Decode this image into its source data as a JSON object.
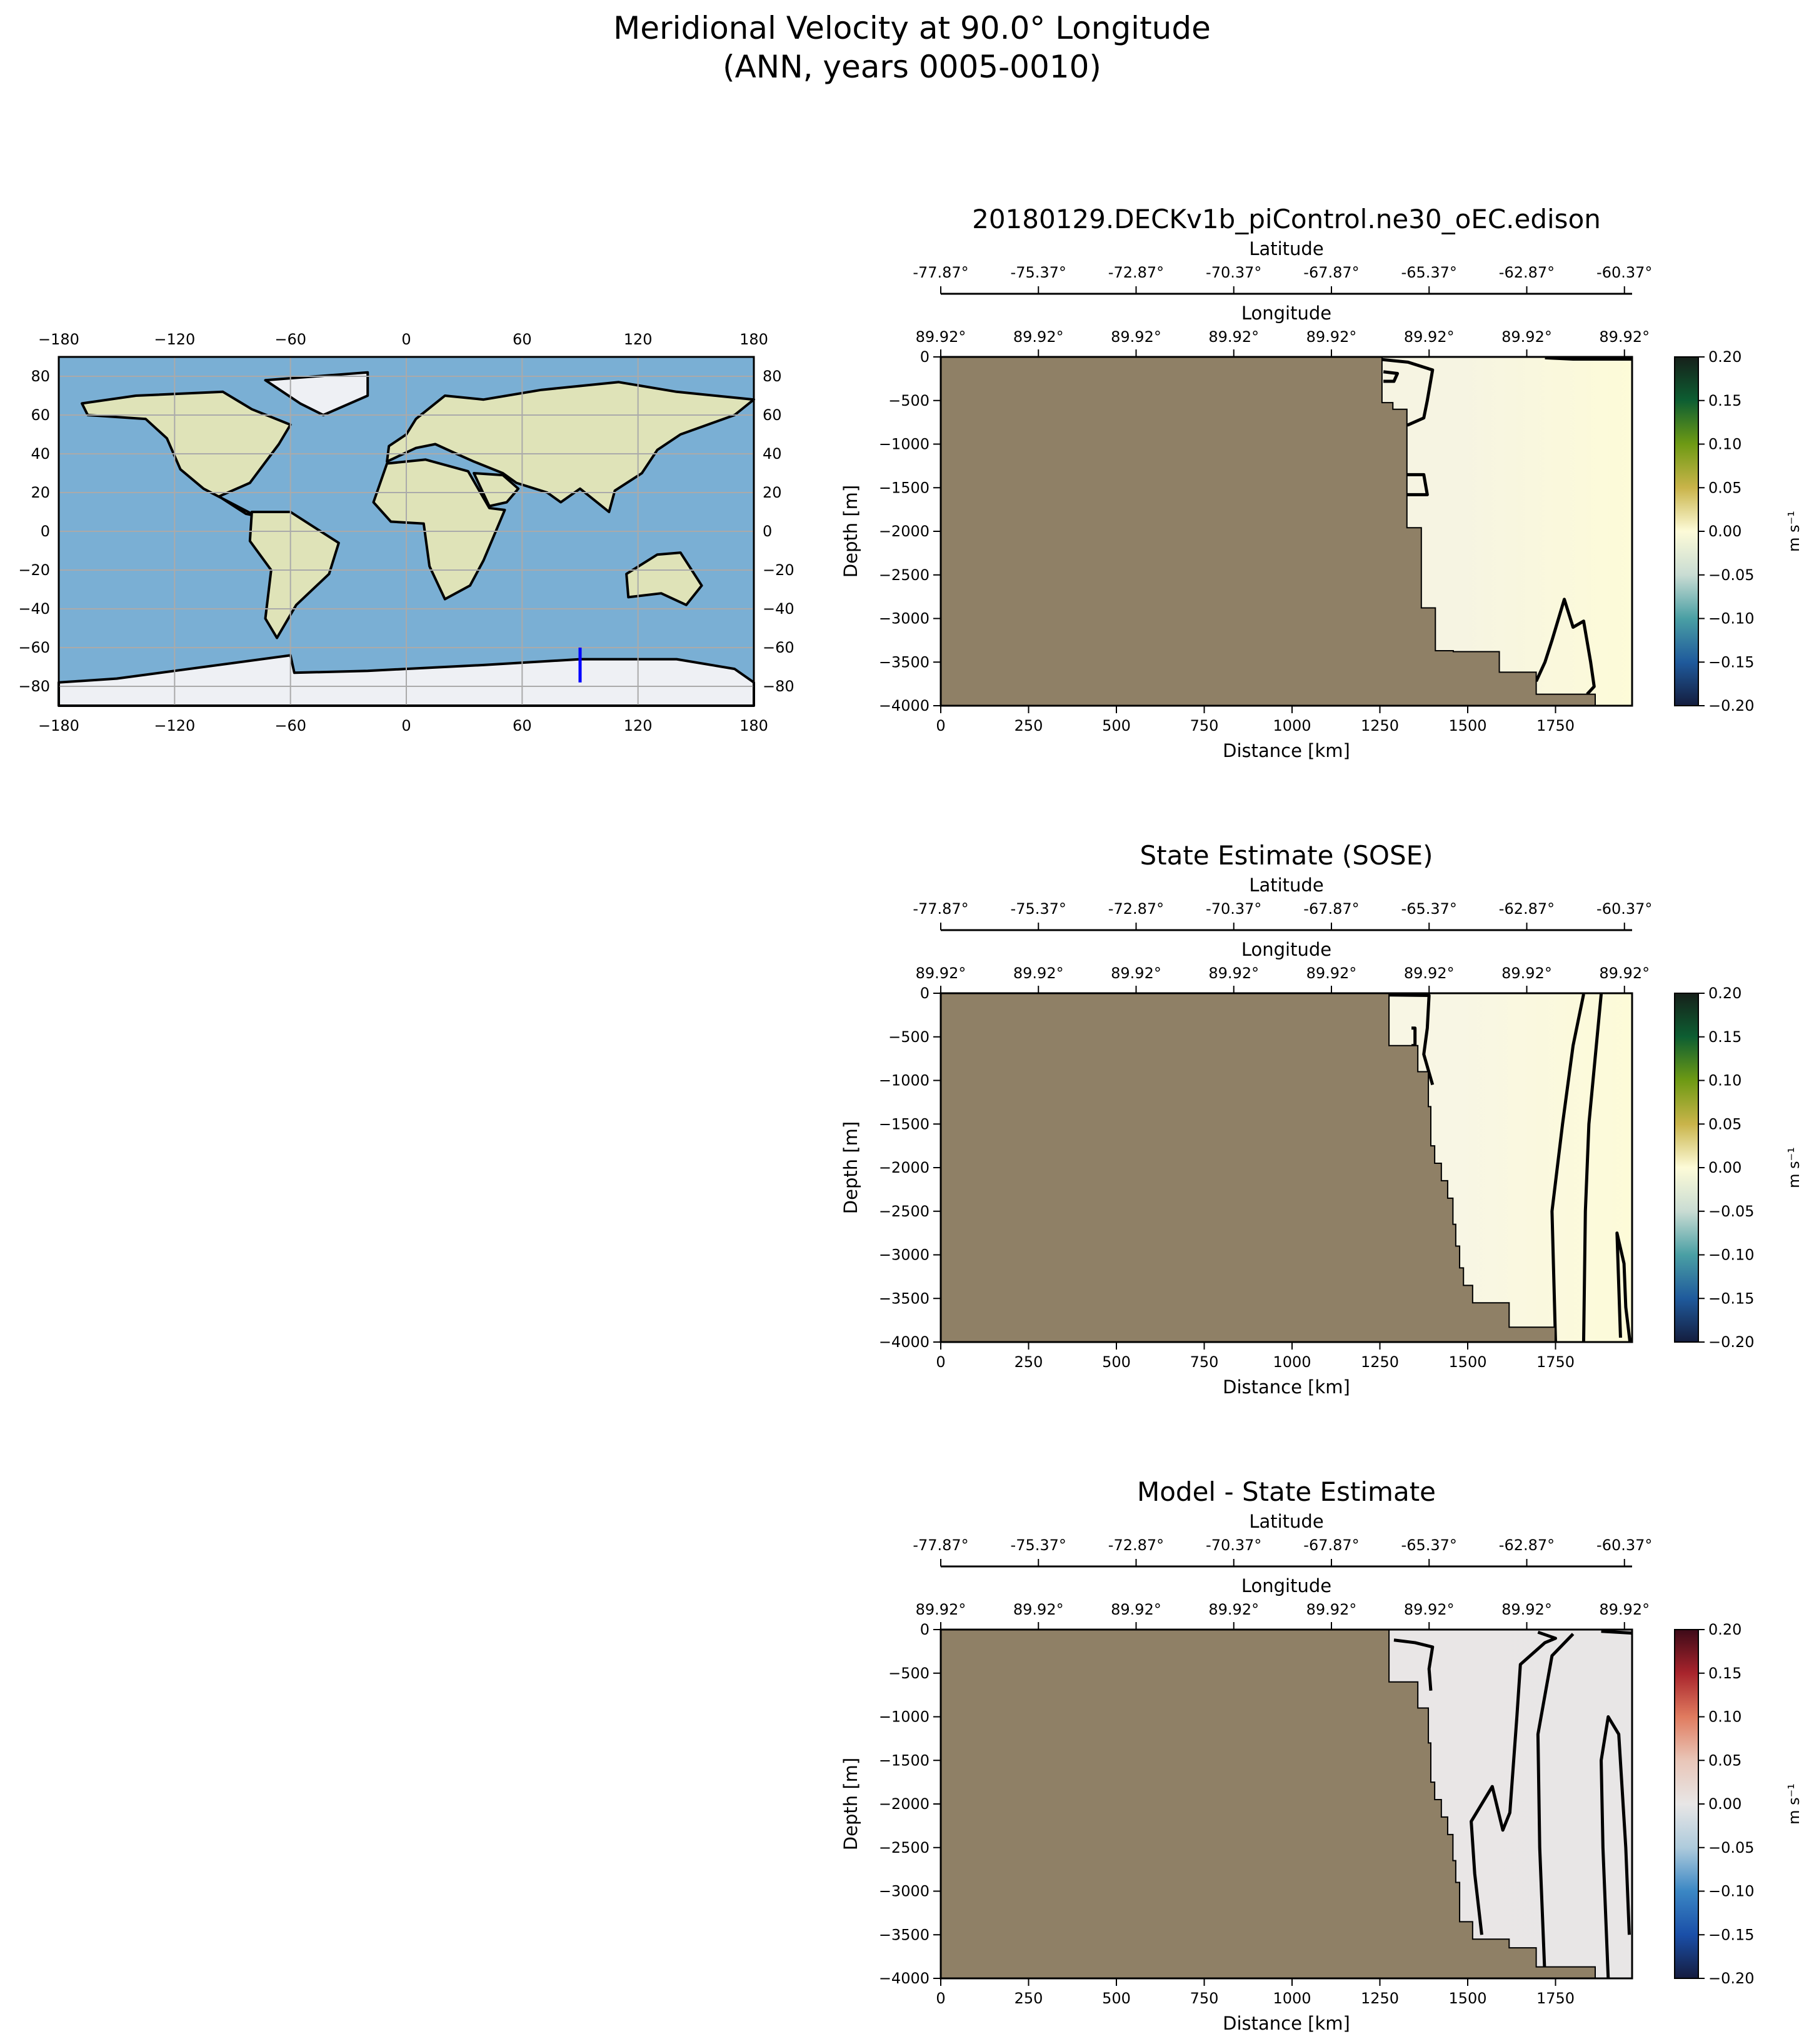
{
  "title_line1": "Meridional Velocity at 90.0° Longitude",
  "title_line2": "(ANN, years 0005-0010)",
  "map": {
    "lon_ticks": [
      "−180",
      "−120",
      "−60",
      "0",
      "60",
      "120",
      "180"
    ],
    "lon_values": [
      -180,
      -120,
      -60,
      0,
      60,
      120,
      180
    ],
    "lat_ticks": [
      "−80",
      "−60",
      "−40",
      "−20",
      "0",
      "20",
      "40",
      "60",
      "80"
    ],
    "lat_values": [
      -80,
      -60,
      -40,
      -20,
      0,
      20,
      40,
      60,
      80
    ],
    "transect": {
      "lon": 90,
      "lat_start": -60,
      "lat_end": -78,
      "color": "#0000ff"
    },
    "ocean_color": "#7aafd4",
    "land_color": "#dfe3b8"
  },
  "chart_data": [
    {
      "type": "heatmap",
      "title": "20180129.DECKv1b_piControl.ne30_oEC.edison",
      "xlabel": "Distance [km]",
      "ylabel": "Depth [m]",
      "top_axis1_label": "Latitude",
      "top_axis2_label": "Longitude",
      "lat_ticks": [
        "-77.87°",
        "-75.37°",
        "-72.87°",
        "-70.37°",
        "-67.87°",
        "-65.37°",
        "-62.87°",
        "-60.37°"
      ],
      "lon_ticks": [
        "89.92°",
        "89.92°",
        "89.92°",
        "89.92°",
        "89.92°",
        "89.92°",
        "89.92°",
        "89.92°"
      ],
      "x_ticks": [
        "0",
        "250",
        "500",
        "750",
        "1000",
        "1250",
        "1500",
        "1750"
      ],
      "x_tick_values": [
        0,
        250,
        500,
        750,
        1000,
        1250,
        1500,
        1750
      ],
      "y_ticks": [
        "0",
        "−500",
        "−1000",
        "−1500",
        "−2000",
        "−2500",
        "−3000",
        "−3500",
        "−4000"
      ],
      "y_tick_values": [
        0,
        -500,
        -1000,
        -1500,
        -2000,
        -2500,
        -3000,
        -3500,
        -4000
      ],
      "xlim": [
        0,
        1968
      ],
      "ylim": [
        -4000,
        0
      ],
      "colorbar_label": "m s⁻¹",
      "colorbar_ticks": [
        "0.20",
        "0.15",
        "0.10",
        "0.05",
        "0.00",
        "−0.05",
        "−0.10",
        "−0.15",
        "−0.20"
      ],
      "clim": [
        -0.2,
        0.2
      ],
      "colormap": [
        "#16201a",
        "#0d5e32",
        "#6e9a14",
        "#c9b44a",
        "#fdfbd8",
        "#c9dcd3",
        "#4a9fa4",
        "#1f5a9c",
        "#141d3e"
      ],
      "field_color": "#f6f4e2",
      "land_color": "#8f8066",
      "bathymetry": [
        [
          0,
          0
        ],
        [
          1256,
          0
        ],
        [
          1256,
          -524
        ],
        [
          1287,
          -524
        ],
        [
          1287,
          -600
        ],
        [
          1327,
          -600
        ],
        [
          1327,
          -1959
        ],
        [
          1368,
          -1959
        ],
        [
          1368,
          -2878
        ],
        [
          1408,
          -2878
        ],
        [
          1408,
          -3369
        ],
        [
          1459,
          -3369
        ],
        [
          1459,
          -3380
        ],
        [
          1590,
          -3380
        ],
        [
          1590,
          -3616
        ],
        [
          1695,
          -3616
        ],
        [
          1695,
          -3868
        ],
        [
          1863,
          -3868
        ],
        [
          1863,
          -4000
        ],
        [
          0,
          -4000
        ]
      ],
      "zero_contours": [
        [
          [
            1256,
            -30
          ],
          [
            1330,
            -60
          ],
          [
            1400,
            -150
          ],
          [
            1385,
            -500
          ],
          [
            1375,
            -700
          ],
          [
            1330,
            -780
          ],
          [
            1327,
            -780
          ]
        ],
        [
          [
            1260,
            -170
          ],
          [
            1300,
            -190
          ],
          [
            1290,
            -280
          ],
          [
            1260,
            -280
          ]
        ],
        [
          [
            1327,
            -1350
          ],
          [
            1375,
            -1350
          ],
          [
            1385,
            -1580
          ],
          [
            1327,
            -1580
          ]
        ],
        [
          [
            1695,
            -3720
          ],
          [
            1720,
            -3500
          ],
          [
            1740,
            -3250
          ],
          [
            1775,
            -2780
          ],
          [
            1800,
            -3100
          ],
          [
            1830,
            -3030
          ],
          [
            1850,
            -3500
          ],
          [
            1860,
            -3780
          ],
          [
            1840,
            -3868
          ]
        ],
        [
          [
            1720,
            -10
          ],
          [
            1800,
            -25
          ],
          [
            1968,
            -25
          ]
        ]
      ]
    },
    {
      "type": "heatmap",
      "title": "State Estimate (SOSE)",
      "xlabel": "Distance [km]",
      "ylabel": "Depth [m]",
      "top_axis1_label": "Latitude",
      "top_axis2_label": "Longitude",
      "lat_ticks": [
        "-77.87°",
        "-75.37°",
        "-72.87°",
        "-70.37°",
        "-67.87°",
        "-65.37°",
        "-62.87°",
        "-60.37°"
      ],
      "lon_ticks": [
        "89.92°",
        "89.92°",
        "89.92°",
        "89.92°",
        "89.92°",
        "89.92°",
        "89.92°",
        "89.92°"
      ],
      "x_ticks": [
        "0",
        "250",
        "500",
        "750",
        "1000",
        "1250",
        "1500",
        "1750"
      ],
      "x_tick_values": [
        0,
        250,
        500,
        750,
        1000,
        1250,
        1500,
        1750
      ],
      "y_ticks": [
        "0",
        "−500",
        "−1000",
        "−1500",
        "−2000",
        "−2500",
        "−3000",
        "−3500",
        "−4000"
      ],
      "y_tick_values": [
        0,
        -500,
        -1000,
        -1500,
        -2000,
        -2500,
        -3000,
        -3500,
        -4000
      ],
      "xlim": [
        0,
        1968
      ],
      "ylim": [
        -4000,
        0
      ],
      "colorbar_label": "m s⁻¹",
      "colorbar_ticks": [
        "0.20",
        "0.15",
        "0.10",
        "0.05",
        "0.00",
        "−0.05",
        "−0.10",
        "−0.15",
        "−0.20"
      ],
      "clim": [
        -0.2,
        0.2
      ],
      "colormap": [
        "#16201a",
        "#0d5e32",
        "#6e9a14",
        "#c9b44a",
        "#fdfbd8",
        "#c9dcd3",
        "#4a9fa4",
        "#1f5a9c",
        "#141d3e"
      ],
      "field_color": "#f8f6e4",
      "land_color": "#8f8066",
      "bathymetry": [
        [
          0,
          0
        ],
        [
          1276,
          0
        ],
        [
          1276,
          -600
        ],
        [
          1358,
          -600
        ],
        [
          1358,
          -900
        ],
        [
          1388,
          -900
        ],
        [
          1388,
          -1300
        ],
        [
          1395,
          -1300
        ],
        [
          1395,
          -1750
        ],
        [
          1406,
          -1750
        ],
        [
          1406,
          -1950
        ],
        [
          1425,
          -1950
        ],
        [
          1425,
          -2150
        ],
        [
          1443,
          -2150
        ],
        [
          1443,
          -2350
        ],
        [
          1458,
          -2350
        ],
        [
          1458,
          -2650
        ],
        [
          1466,
          -2650
        ],
        [
          1466,
          -2900
        ],
        [
          1477,
          -2900
        ],
        [
          1477,
          -3150
        ],
        [
          1488,
          -3150
        ],
        [
          1488,
          -3350
        ],
        [
          1514,
          -3350
        ],
        [
          1514,
          -3550
        ],
        [
          1618,
          -3550
        ],
        [
          1618,
          -3830
        ],
        [
          1749,
          -3830
        ],
        [
          1749,
          -4000
        ],
        [
          0,
          -4000
        ]
      ],
      "zero_contours": [
        [
          [
            1276,
            -20
          ],
          [
            1390,
            -25
          ],
          [
            1385,
            -400
          ],
          [
            1375,
            -700
          ],
          [
            1400,
            -1050
          ]
        ],
        [
          [
            1340,
            -400
          ],
          [
            1350,
            -400
          ],
          [
            1350,
            -600
          ],
          [
            1340,
            -600
          ]
        ],
        [
          [
            1750,
            -4000
          ],
          [
            1740,
            -2500
          ],
          [
            1770,
            -1500
          ],
          [
            1800,
            -600
          ],
          [
            1830,
            -10
          ]
        ],
        [
          [
            1830,
            -4000
          ],
          [
            1835,
            -2500
          ],
          [
            1845,
            -1500
          ],
          [
            1880,
            -10
          ]
        ],
        [
          [
            1935,
            -3950
          ],
          [
            1925,
            -2750
          ],
          [
            1945,
            -3100
          ],
          [
            1950,
            -3600
          ],
          [
            1962,
            -4000
          ]
        ]
      ]
    },
    {
      "type": "heatmap",
      "title": "Model - State Estimate",
      "xlabel": "Distance [km]",
      "ylabel": "Depth [m]",
      "top_axis1_label": "Latitude",
      "top_axis2_label": "Longitude",
      "lat_ticks": [
        "-77.87°",
        "-75.37°",
        "-72.87°",
        "-70.37°",
        "-67.87°",
        "-65.37°",
        "-62.87°",
        "-60.37°"
      ],
      "lon_ticks": [
        "89.92°",
        "89.92°",
        "89.92°",
        "89.92°",
        "89.92°",
        "89.92°",
        "89.92°",
        "89.92°"
      ],
      "x_ticks": [
        "0",
        "250",
        "500",
        "750",
        "1000",
        "1250",
        "1500",
        "1750"
      ],
      "x_tick_values": [
        0,
        250,
        500,
        750,
        1000,
        1250,
        1500,
        1750
      ],
      "y_ticks": [
        "0",
        "−500",
        "−1000",
        "−1500",
        "−2000",
        "−2500",
        "−3000",
        "−3500",
        "−4000"
      ],
      "y_tick_values": [
        0,
        -500,
        -1000,
        -1500,
        -2000,
        -2500,
        -3000,
        -3500,
        -4000
      ],
      "xlim": [
        0,
        1968
      ],
      "ylim": [
        -4000,
        0
      ],
      "colorbar_label": "m s⁻¹",
      "colorbar_ticks": [
        "0.20",
        "0.15",
        "0.10",
        "0.05",
        "0.00",
        "−0.05",
        "−0.10",
        "−0.15",
        "−0.20"
      ],
      "clim": [
        -0.2,
        0.2
      ],
      "colormap": [
        "#3d0a18",
        "#a8242c",
        "#e07b5f",
        "#e9c6b8",
        "#e8e6e6",
        "#aecbdc",
        "#3b87c4",
        "#1a4fa8",
        "#151c3f"
      ],
      "field_color": "#e9e6e6",
      "land_color": "#8f8066",
      "bathymetry": [
        [
          0,
          0
        ],
        [
          1276,
          0
        ],
        [
          1276,
          -600
        ],
        [
          1358,
          -600
        ],
        [
          1358,
          -900
        ],
        [
          1388,
          -900
        ],
        [
          1388,
          -1300
        ],
        [
          1395,
          -1300
        ],
        [
          1395,
          -1750
        ],
        [
          1406,
          -1750
        ],
        [
          1406,
          -1950
        ],
        [
          1425,
          -1950
        ],
        [
          1425,
          -2150
        ],
        [
          1443,
          -2150
        ],
        [
          1443,
          -2350
        ],
        [
          1458,
          -2350
        ],
        [
          1458,
          -2650
        ],
        [
          1466,
          -2650
        ],
        [
          1466,
          -2900
        ],
        [
          1477,
          -2900
        ],
        [
          1477,
          -3350
        ],
        [
          1514,
          -3350
        ],
        [
          1514,
          -3550
        ],
        [
          1618,
          -3550
        ],
        [
          1618,
          -3650
        ],
        [
          1695,
          -3650
        ],
        [
          1695,
          -3868
        ],
        [
          1863,
          -3868
        ],
        [
          1863,
          -4000
        ],
        [
          0,
          -4000
        ]
      ],
      "zero_contours": [
        [
          [
            1290,
            -120
          ],
          [
            1350,
            -150
          ],
          [
            1400,
            -200
          ],
          [
            1390,
            -450
          ],
          [
            1395,
            -700
          ]
        ],
        [
          [
            1540,
            -3500
          ],
          [
            1520,
            -2800
          ],
          [
            1510,
            -2200
          ],
          [
            1570,
            -1800
          ],
          [
            1600,
            -2300
          ],
          [
            1620,
            -2100
          ],
          [
            1640,
            -1000
          ],
          [
            1650,
            -400
          ],
          [
            1720,
            -150
          ],
          [
            1750,
            -100
          ],
          [
            1700,
            -30
          ]
        ],
        [
          [
            1720,
            -4000
          ],
          [
            1705,
            -2500
          ],
          [
            1700,
            -1200
          ],
          [
            1740,
            -300
          ],
          [
            1800,
            -50
          ]
        ],
        [
          [
            1900,
            -4000
          ],
          [
            1885,
            -2500
          ],
          [
            1880,
            -1500
          ],
          [
            1900,
            -1000
          ],
          [
            1930,
            -1200
          ],
          [
            1950,
            -2500
          ],
          [
            1960,
            -3500
          ]
        ],
        [
          [
            1880,
            -20
          ],
          [
            1968,
            -40
          ]
        ]
      ]
    }
  ]
}
